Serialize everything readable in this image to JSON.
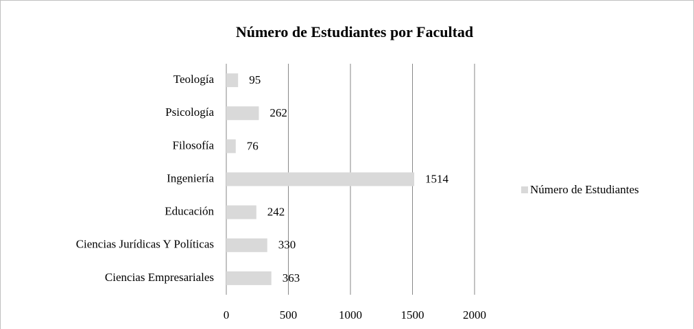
{
  "chart_data": {
    "type": "bar",
    "orientation": "horizontal",
    "title": "Número de Estudiantes por Facultad",
    "categories": [
      "Teología",
      "Psicología",
      "Filosofía",
      "Ingeniería",
      "Educación",
      "Ciencias Jurídicas Y Políticas",
      "Ciencias Empresariales"
    ],
    "series": [
      {
        "name": "Número de Estudiantes",
        "color": "#d9d9d9",
        "values": [
          95,
          262,
          76,
          1514,
          242,
          330,
          363
        ]
      }
    ],
    "xlim": [
      0,
      2000
    ],
    "xticks": [
      0,
      500,
      1000,
      1500,
      2000
    ],
    "grid": true,
    "legend": "right"
  }
}
